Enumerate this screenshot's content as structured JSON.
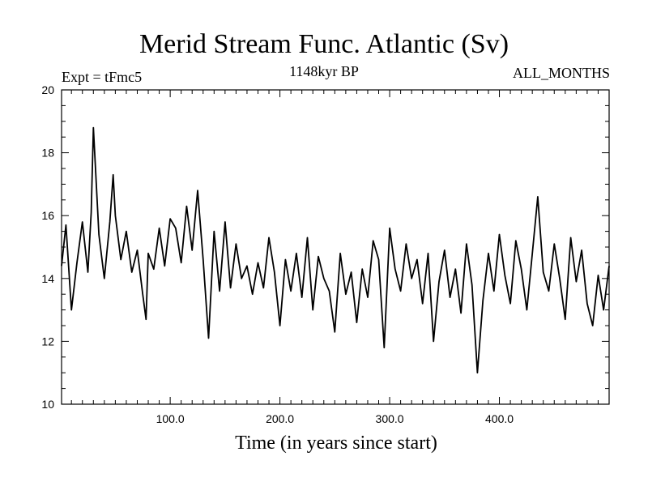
{
  "chart_data": {
    "type": "line",
    "title": "Merid Stream Func. Atlantic (Sv)",
    "subtitle": "1148kyr BP",
    "left_label": "Expt = tFmc5",
    "right_label": "ALL_MONTHS",
    "xlabel": "Time (in years since start)",
    "ylabel": "",
    "xlim": [
      1,
      500
    ],
    "ylim": [
      10,
      20
    ],
    "xticks": [
      100,
      200,
      300,
      400
    ],
    "xtick_labels": [
      "100.0",
      "200.0",
      "300.0",
      "400.0"
    ],
    "yticks": [
      10,
      12,
      14,
      16,
      18,
      20
    ],
    "ytick_labels": [
      "10",
      "12",
      "14",
      "16",
      "18",
      "20"
    ],
    "series": [
      {
        "name": "Merid Stream Func. Atlantic",
        "x": [
          1,
          5,
          10,
          15,
          20,
          25,
          28,
          30,
          35,
          40,
          45,
          48,
          50,
          55,
          60,
          65,
          70,
          75,
          78,
          80,
          85,
          90,
          95,
          100,
          105,
          110,
          115,
          120,
          125,
          130,
          135,
          140,
          145,
          150,
          155,
          160,
          165,
          170,
          175,
          180,
          185,
          190,
          195,
          200,
          205,
          210,
          215,
          220,
          225,
          230,
          235,
          240,
          245,
          250,
          255,
          260,
          265,
          270,
          275,
          280,
          285,
          290,
          295,
          300,
          305,
          310,
          315,
          320,
          325,
          330,
          335,
          340,
          345,
          350,
          355,
          360,
          365,
          370,
          375,
          380,
          385,
          390,
          395,
          400,
          405,
          410,
          415,
          420,
          425,
          430,
          435,
          440,
          445,
          450,
          455,
          460,
          465,
          470,
          475,
          480,
          485,
          490,
          495,
          500
        ],
        "values": [
          14.4,
          15.7,
          13.0,
          14.5,
          15.8,
          14.2,
          16.1,
          18.8,
          15.4,
          14.0,
          15.8,
          17.3,
          16.0,
          14.6,
          15.5,
          14.2,
          14.9,
          13.5,
          12.7,
          14.8,
          14.3,
          15.6,
          14.4,
          15.9,
          15.6,
          14.5,
          16.3,
          14.9,
          16.8,
          14.6,
          12.1,
          15.5,
          13.6,
          15.8,
          13.7,
          15.1,
          14.0,
          14.4,
          13.5,
          14.5,
          13.7,
          15.3,
          14.2,
          12.5,
          14.6,
          13.6,
          14.8,
          13.4,
          15.3,
          13.0,
          14.7,
          14.0,
          13.6,
          12.3,
          14.8,
          13.5,
          14.2,
          12.6,
          14.3,
          13.4,
          15.2,
          14.6,
          11.8,
          15.6,
          14.3,
          13.6,
          15.1,
          14.0,
          14.6,
          13.2,
          14.8,
          12.0,
          13.9,
          14.9,
          13.4,
          14.3,
          12.9,
          15.1,
          13.8,
          11.0,
          13.3,
          14.8,
          13.6,
          15.4,
          14.1,
          13.2,
          15.2,
          14.3,
          13.0,
          14.8,
          16.6,
          14.2,
          13.6,
          15.1,
          14.0,
          12.7,
          15.3,
          13.9,
          14.9,
          13.2,
          12.5,
          14.1,
          13.0,
          14.4
        ]
      }
    ]
  }
}
